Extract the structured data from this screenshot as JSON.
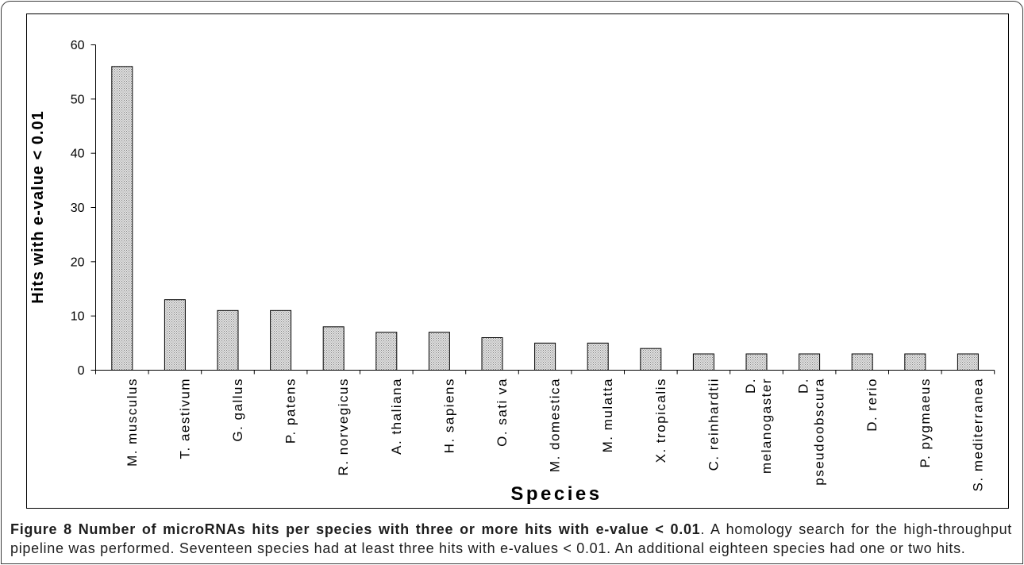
{
  "figure": {
    "caption_title": "Figure 8 Number of microRNAs hits per species with three or more hits with e-value < 0.01",
    "caption_text": ". A homology search for the high-throughput pipeline was performed. Seventeen species had at least three hits with e-values < 0.01. An additional eighteen species had one or two hits."
  },
  "chart_data": {
    "type": "bar",
    "categories": [
      "M. musculus",
      "T. aestivum",
      "G. gallus",
      "P. patens",
      "R. norvegicus",
      "A. thaliana",
      "H. sapiens",
      "O. sati va",
      "M. domestica",
      "M. mulatta",
      "X. tropicalis",
      "C. reinhardtii",
      "D. melanogaster",
      "D. pseudoobscura",
      "D. rerio",
      "P. pygmaeus",
      "S. mediterranea"
    ],
    "values": [
      56,
      13,
      11,
      11,
      8,
      7,
      7,
      6,
      5,
      5,
      4,
      3,
      3,
      3,
      3,
      3,
      3
    ],
    "xlabel": "Species",
    "ylabel": "Hits with e-value < 0.01",
    "ylim": [
      0,
      60
    ],
    "yticks": [
      0,
      10,
      20,
      30,
      40,
      50,
      60
    ],
    "grid": false,
    "bar_fill": "#e2e2e2",
    "bar_dot": "#7f7f7f",
    "axis_color": "#000000"
  }
}
